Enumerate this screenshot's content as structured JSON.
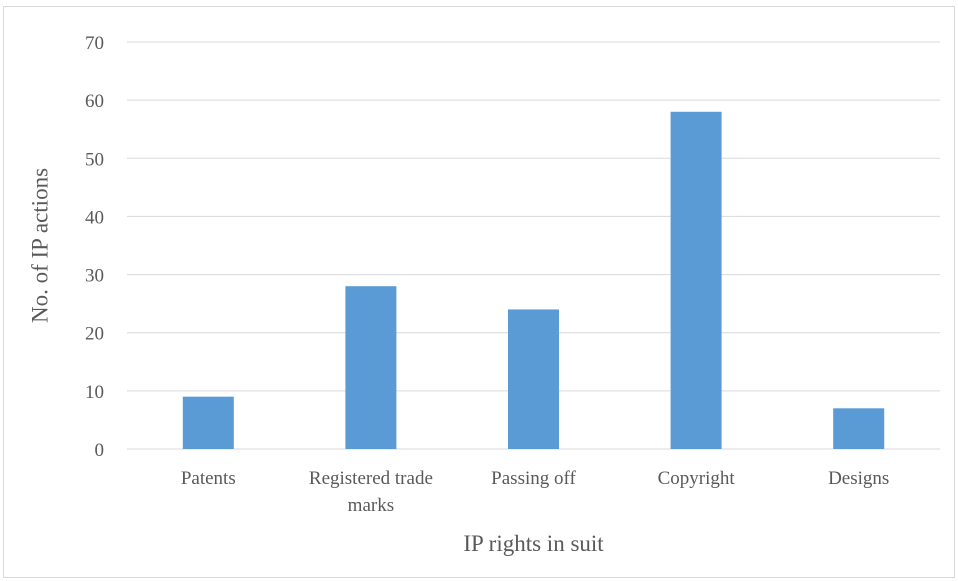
{
  "chart_data": {
    "type": "bar",
    "title": "",
    "xlabel": "IP rights in suit",
    "ylabel": "No. of IP actions",
    "categories": [
      [
        "Patents"
      ],
      [
        "Registered trade",
        "marks"
      ],
      [
        "Passing off"
      ],
      [
        "Copyright"
      ],
      [
        "Designs"
      ]
    ],
    "series": [
      {
        "values": [
          9,
          28,
          24,
          58,
          7
        ]
      }
    ],
    "ylim": [
      0,
      70
    ],
    "yticks": [
      "0",
      "10",
      "20",
      "30",
      "40",
      "50",
      "60",
      "70"
    ],
    "grid": true,
    "legend": "none",
    "colors": {
      "bar": "#5b9bd5",
      "grid": "#d9d9d9",
      "text": "#595959"
    }
  }
}
